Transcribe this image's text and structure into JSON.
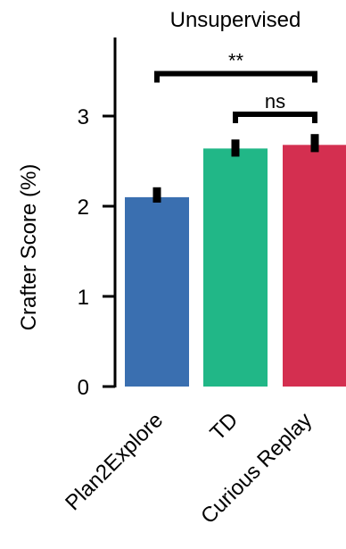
{
  "chart_data": {
    "type": "bar",
    "title": "Unsupervised",
    "ylabel": "Crafter Score (%)",
    "xlabel": "",
    "ylim": [
      0,
      3.9
    ],
    "yticks": [
      0,
      1,
      2,
      3
    ],
    "categories": [
      "Plan2Explore",
      "TD",
      "Curious Replay"
    ],
    "values": [
      2.1,
      2.64,
      2.68
    ],
    "errors": [
      [
        2.04,
        2.21
      ],
      [
        2.55,
        2.74
      ],
      [
        2.6,
        2.8
      ]
    ],
    "colors": [
      "#3a6fb0",
      "#21b787",
      "#d42f50"
    ],
    "significance": [
      {
        "from": 0,
        "to": 2,
        "label": "**",
        "y": 3.47
      },
      {
        "from": 1,
        "to": 2,
        "label": "ns",
        "y": 3.02
      }
    ],
    "grid": false,
    "legend": "none"
  }
}
